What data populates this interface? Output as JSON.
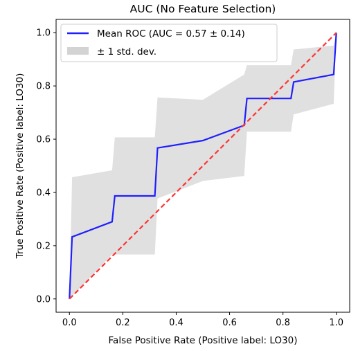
{
  "chart_data": {
    "type": "line",
    "title": "AUC (No Feature Selection)",
    "xlabel": "False Positive Rate (Positive label: LO30)",
    "ylabel": "True Positive Rate (Positive label: LO30)",
    "xlim": [
      -0.05,
      1.05
    ],
    "ylim": [
      -0.05,
      1.05
    ],
    "xticks": [
      0.0,
      0.2,
      0.4,
      0.6,
      0.8,
      1.0
    ],
    "yticks": [
      0.0,
      0.2,
      0.4,
      0.6,
      0.8,
      1.0
    ],
    "xtick_labels": [
      "0.0",
      "0.2",
      "0.4",
      "0.6",
      "0.8",
      "1.0"
    ],
    "ytick_labels": [
      "0.0",
      "0.2",
      "0.4",
      "0.6",
      "0.8",
      "1.0"
    ],
    "grid": false,
    "legend_position": "top-left",
    "series": [
      {
        "name": "Mean ROC (AUC = 0.57 ± 0.14)",
        "kind": "line",
        "color": "#1f1fff",
        "x": [
          0.0,
          0.01,
          0.16,
          0.17,
          0.32,
          0.33,
          0.5,
          0.655,
          0.665,
          0.83,
          0.84,
          0.99,
          1.0
        ],
        "y": [
          0.0,
          0.233,
          0.29,
          0.387,
          0.387,
          0.567,
          0.595,
          0.652,
          0.753,
          0.753,
          0.815,
          0.843,
          1.0
        ]
      },
      {
        "name": "± 1 std. dev.",
        "kind": "band",
        "color": "#d3d3d3",
        "x": [
          0.0,
          0.01,
          0.16,
          0.17,
          0.32,
          0.33,
          0.5,
          0.655,
          0.665,
          0.83,
          0.84,
          0.99,
          1.0
        ],
        "upper": [
          0.0,
          0.457,
          0.483,
          0.607,
          0.607,
          0.757,
          0.748,
          0.843,
          0.878,
          0.878,
          0.937,
          0.952,
          1.0
        ],
        "lower": [
          0.0,
          0.01,
          0.167,
          0.167,
          0.167,
          0.377,
          0.443,
          0.462,
          0.628,
          0.628,
          0.693,
          0.733,
          1.0
        ]
      },
      {
        "kind": "reference",
        "color": "#ff3333",
        "x": [
          0,
          1
        ],
        "y": [
          0,
          1
        ]
      }
    ]
  }
}
